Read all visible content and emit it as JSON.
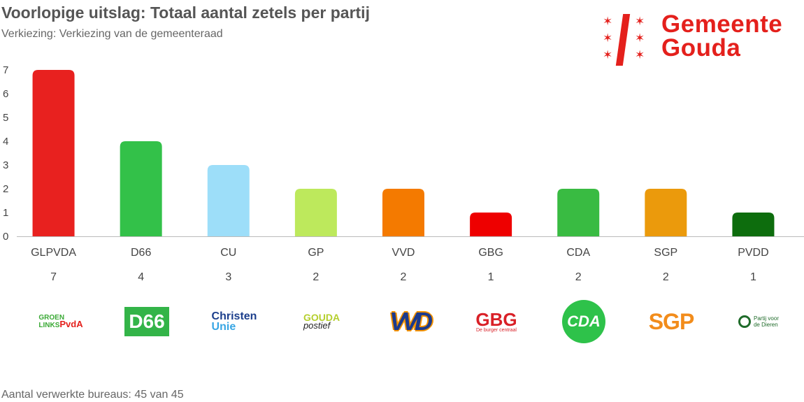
{
  "header": {
    "title": "Voorlopige uitslag: Totaal aantal zetels per partij",
    "subtitle": "Verkiezing: Verkiezing van de gemeenteraad"
  },
  "brand": {
    "line1": "Gemeente",
    "line2": "Gouda",
    "color": "#e4201c"
  },
  "footer": {
    "text": "Aantal verwerkte bureaus: 45 van 45"
  },
  "logos": {
    "glpvda": {
      "line1": "GROEN",
      "line2": "LINKS",
      "mark": "PvdA"
    },
    "d66": {
      "text": "D66"
    },
    "cu": {
      "line1": "Christen",
      "line2": "Unie"
    },
    "gp": {
      "line1": "GOUDA",
      "line2": "postief"
    },
    "vvd": {
      "text": "VVD"
    },
    "gbg": {
      "line1": "GBG",
      "line2": "De burger centraal"
    },
    "cda": {
      "text": "CDA"
    },
    "sgp": {
      "text": "SGP"
    },
    "pvdd": {
      "line1": "Partij voor",
      "line2": "de Dieren"
    }
  },
  "chart_data": {
    "type": "bar",
    "title": "Voorlopige uitslag: Totaal aantal zetels per partij",
    "subtitle": "Verkiezing: Verkiezing van de gemeenteraad",
    "categories": [
      "GLPVDA",
      "D66",
      "CU",
      "GP",
      "VVD",
      "GBG",
      "CDA",
      "SGP",
      "PVDD"
    ],
    "values": [
      7,
      4,
      3,
      2,
      2,
      1,
      2,
      2,
      1
    ],
    "value_labels": [
      "7",
      "4",
      "3",
      "2",
      "2",
      "1",
      "2",
      "2",
      "1"
    ],
    "colors": [
      "#e8211f",
      "#33c149",
      "#9ddef9",
      "#bde95c",
      "#f47a00",
      "#ee0000",
      "#39bb42",
      "#eb9a0c",
      "#0d6d0d"
    ],
    "ylim": [
      0,
      7
    ],
    "yticks": [
      0,
      1,
      2,
      3,
      4,
      5,
      6,
      7
    ],
    "grid": false,
    "legend": "none"
  }
}
